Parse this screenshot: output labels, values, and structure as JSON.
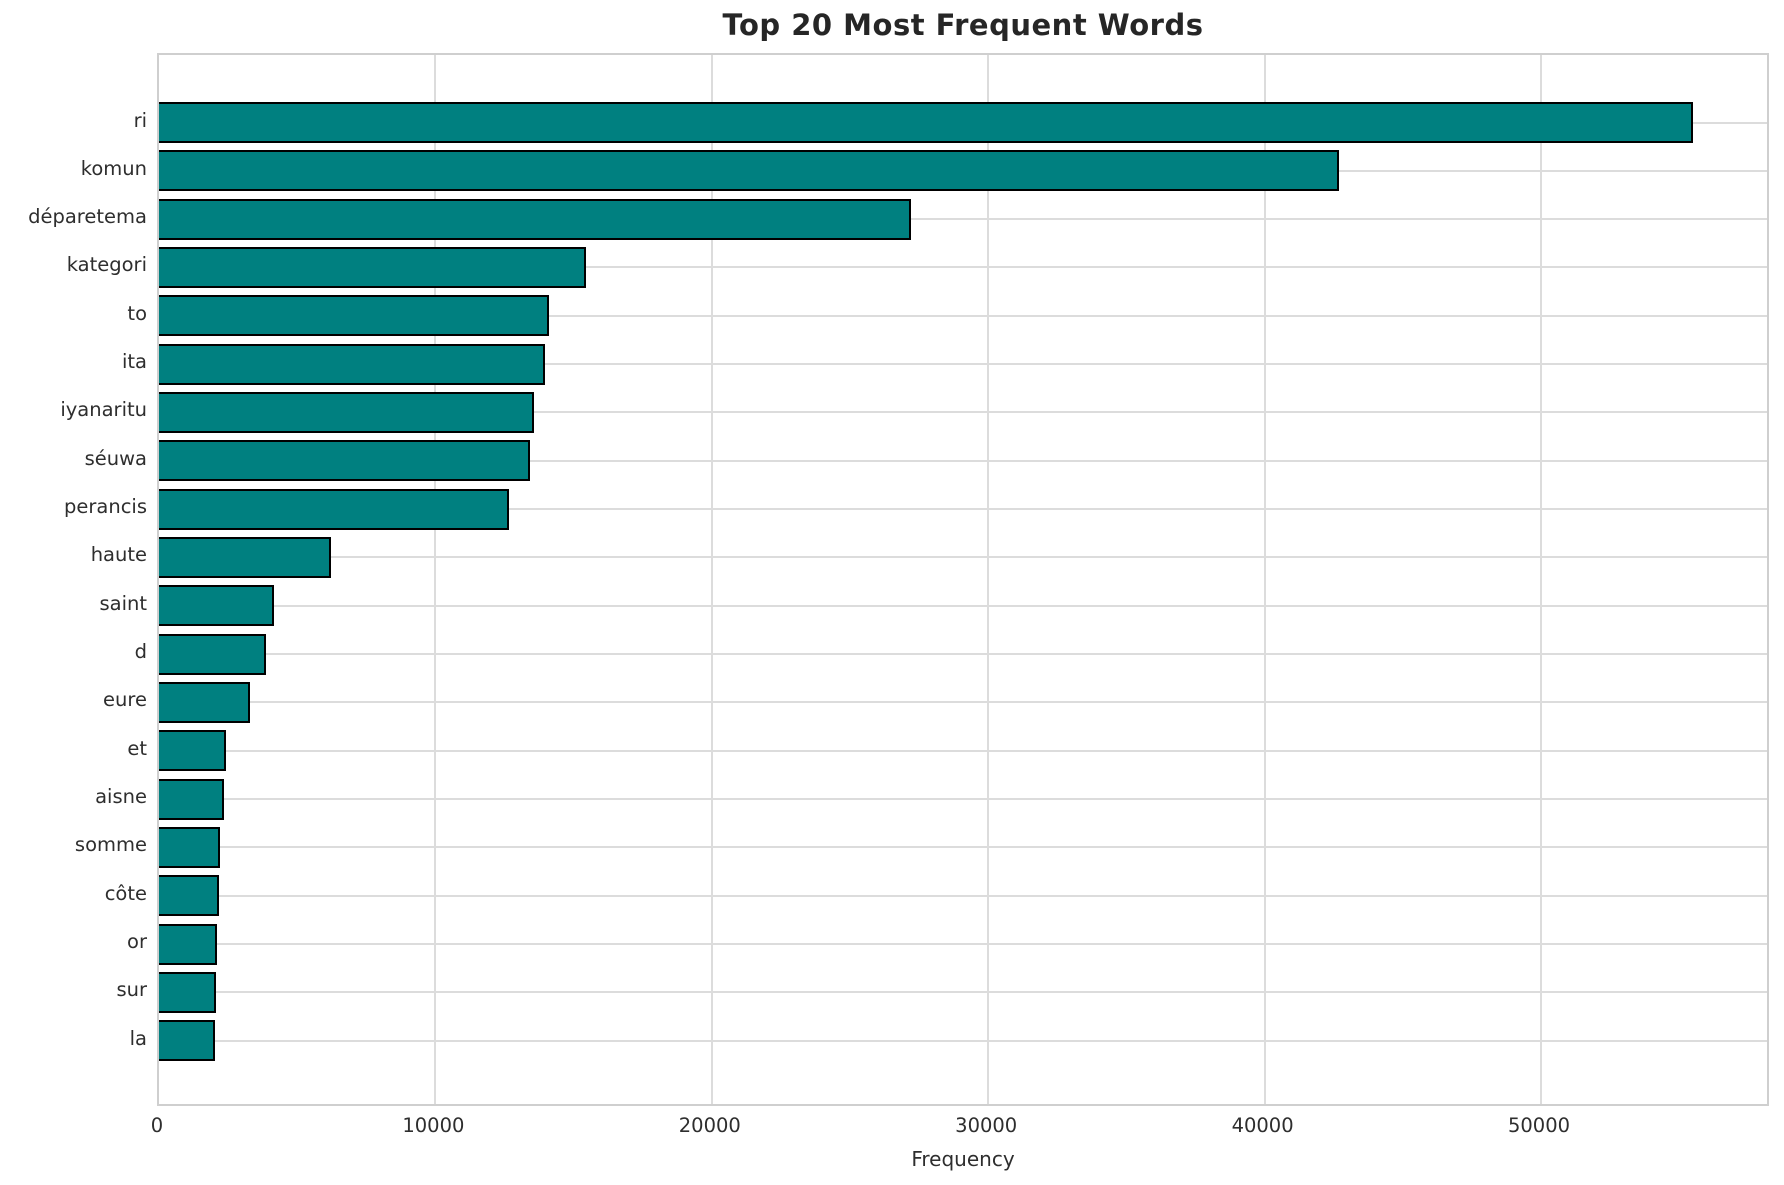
{
  "chart_data": {
    "type": "bar",
    "orientation": "horizontal",
    "title": "Top 20 Most Frequent Words",
    "xlabel": "Frequency",
    "ylabel": "",
    "categories": [
      "ri",
      "komun",
      "déparetema",
      "kategori",
      "to",
      "ita",
      "iyanaritu",
      "séuwa",
      "perancis",
      "haute",
      "saint",
      "d",
      "eure",
      "et",
      "aisne",
      "somme",
      "côte",
      "or",
      "sur",
      "la"
    ],
    "values": [
      55500,
      42700,
      27200,
      15450,
      14100,
      13950,
      13550,
      13440,
      12680,
      6230,
      4170,
      3860,
      3280,
      2420,
      2340,
      2200,
      2160,
      2110,
      2060,
      2010
    ],
    "xticks": [
      0,
      10000,
      20000,
      30000,
      40000,
      50000
    ],
    "xtick_labels": [
      "0",
      "10000",
      "20000",
      "30000",
      "40000",
      "50000"
    ],
    "xlim": [
      0,
      58320
    ],
    "grid": true,
    "legend": null,
    "bar_color": "#008080",
    "bar_edge_color": "#000000",
    "grid_color": "#dcdcdc",
    "frame_color": "#cfcfcf",
    "text_color": "#2e2e2e",
    "title_color": "#262626",
    "background_color": "#ffffff"
  }
}
